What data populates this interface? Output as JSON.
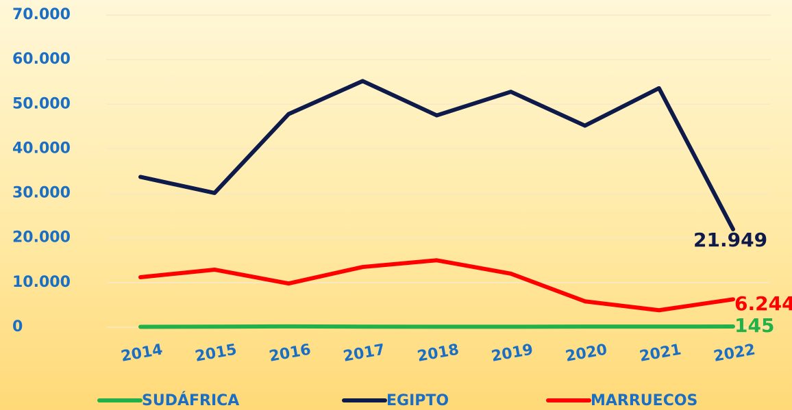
{
  "chart_data": {
    "type": "line",
    "x": [
      "2014",
      "2015",
      "2016",
      "2017",
      "2018",
      "2019",
      "2020",
      "2021",
      "2022"
    ],
    "series": [
      {
        "name": "SUDÁFRICA",
        "color": "#22b04b",
        "values": [
          80,
          110,
          180,
          120,
          90,
          100,
          130,
          140,
          145
        ],
        "value_labels": [
          null,
          null,
          null,
          null,
          null,
          null,
          null,
          null,
          "145"
        ]
      },
      {
        "name": "EGIPTO",
        "color": "#0d1a4a",
        "values": [
          33700,
          30100,
          47800,
          55200,
          47500,
          52800,
          45200,
          53600,
          21949
        ],
        "value_labels": [
          null,
          null,
          null,
          null,
          null,
          null,
          null,
          null,
          "21.949"
        ]
      },
      {
        "name": "MARRUECOS",
        "color": "#ff0000",
        "values": [
          11200,
          12900,
          9800,
          13500,
          15000,
          12000,
          5800,
          3800,
          6244
        ],
        "value_labels": [
          null,
          null,
          null,
          null,
          null,
          null,
          null,
          null,
          "6.244"
        ]
      }
    ],
    "ylim": [
      0,
      70000
    ],
    "yticks": [
      0,
      {
        "value": 10000,
        "label": "10.000"
      },
      {
        "value": 20000,
        "label": "20.000"
      },
      {
        "value": 30000,
        "label": "30.000"
      },
      {
        "value": 40000,
        "label": "40.000"
      },
      {
        "value": 50000,
        "label": "50.000"
      },
      {
        "value": 60000,
        "label": "60.000"
      },
      {
        "value": 70000,
        "label": "70.000"
      }
    ],
    "grid": true,
    "legend": "bottom"
  }
}
